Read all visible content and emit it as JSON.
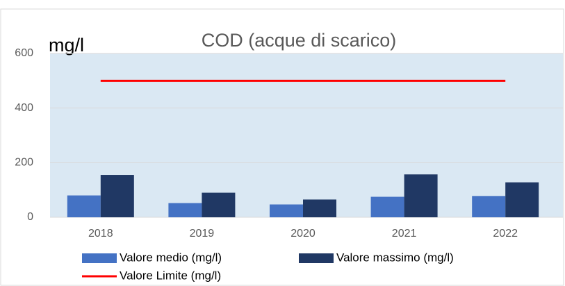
{
  "chart_data": {
    "type": "bar",
    "title": "COD (acque di scarico)",
    "y_label": "mg/l",
    "categories": [
      "2018",
      "2019",
      "2020",
      "2021",
      "2022"
    ],
    "series": [
      {
        "name": "Valore medio (mg/l)",
        "color": "#4472c4",
        "values": [
          80,
          52,
          47,
          75,
          78
        ]
      },
      {
        "name": "Valore massimo (mg/l)",
        "color": "#203864",
        "values": [
          155,
          90,
          65,
          157,
          128
        ]
      },
      {
        "name": "Valore Limite (mg/l)",
        "color": "#ff0000",
        "type": "line",
        "values": [
          500,
          500,
          500,
          500,
          500
        ]
      }
    ],
    "ylim": [
      0,
      600
    ],
    "yticks": [
      0,
      200,
      400,
      600
    ],
    "grid": true
  }
}
